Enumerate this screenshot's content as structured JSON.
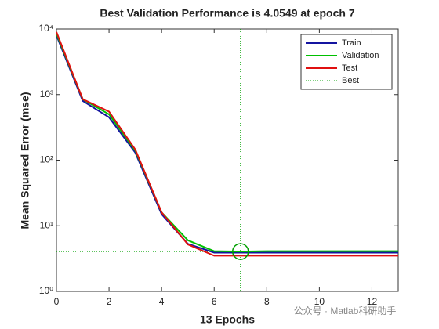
{
  "chart_data": {
    "type": "line",
    "title": "Best Validation Performance is 4.0549 at epoch 7",
    "xlabel": "13 Epochs",
    "ylabel": "Mean Squared Error  (mse)",
    "x": [
      0,
      1,
      2,
      3,
      4,
      5,
      6,
      7,
      8,
      9,
      10,
      11,
      12,
      13
    ],
    "series": [
      {
        "name": "Train",
        "color": "#1414a0",
        "values": [
          8000,
          800,
          450,
          130,
          15,
          5.3,
          3.9,
          3.9,
          3.9,
          3.9,
          3.9,
          3.9,
          3.9,
          3.9
        ]
      },
      {
        "name": "Validation",
        "color": "#00c000",
        "values": [
          8500,
          850,
          500,
          140,
          16,
          6.0,
          4.1,
          4.0549,
          4.1,
          4.1,
          4.1,
          4.1,
          4.1,
          4.1
        ]
      },
      {
        "name": "Test",
        "color": "#e01010",
        "values": [
          9000,
          850,
          550,
          145,
          16,
          5.2,
          3.5,
          3.5,
          3.5,
          3.5,
          3.5,
          3.5,
          3.5,
          3.5
        ]
      }
    ],
    "best": {
      "name": "Best",
      "x": 7,
      "y": 4.0549,
      "color": "#00a000"
    },
    "xlim": [
      0,
      13
    ],
    "xticks": [
      0,
      2,
      4,
      6,
      8,
      10,
      12
    ],
    "ylim": [
      1,
      10000
    ],
    "yticks": [
      {
        "value": 1,
        "label": "10⁰"
      },
      {
        "value": 10,
        "label": "10¹"
      },
      {
        "value": 100,
        "label": "10²"
      },
      {
        "value": 1000,
        "label": "10³"
      },
      {
        "value": 10000,
        "label": "10⁴"
      }
    ],
    "log_y": true,
    "legend": "northeast",
    "watermark": "公众号 · Matlab科研助手"
  }
}
